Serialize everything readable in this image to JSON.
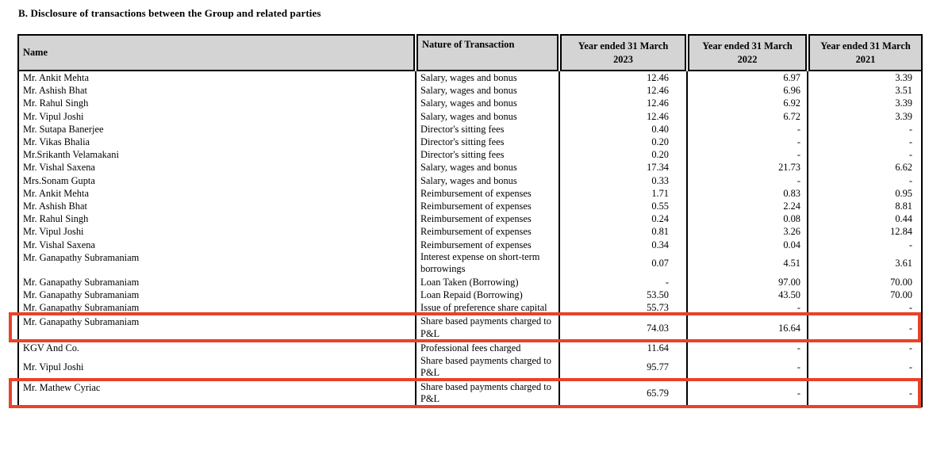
{
  "title": "B. Disclosure of transactions between the Group and related parties",
  "colors": {
    "highlight": "#e8432a",
    "header_bg": "#d4d4d4"
  },
  "table": {
    "columns": [
      "Name",
      "Nature of Transaction",
      "Year ended 31 March\n2023",
      "Year ended 31 March\n2022",
      "Year ended 31 March\n2021"
    ],
    "groups": [
      {
        "highlighted": false,
        "rows": [
          {
            "name": "Mr. Ankit Mehta",
            "nature": "Salary, wages and bonus",
            "v2023": "12.46",
            "v2022": "6.97",
            "v2021": "3.39"
          },
          {
            "name": "Mr. Ashish Bhat",
            "nature": "Salary, wages and bonus",
            "v2023": "12.46",
            "v2022": "6.96",
            "v2021": "3.51"
          },
          {
            "name": "Mr. Rahul Singh",
            "nature": "Salary, wages and bonus",
            "v2023": "12.46",
            "v2022": "6.92",
            "v2021": "3.39"
          },
          {
            "name": "Mr. Vipul Joshi",
            "nature": "Salary, wages and bonus",
            "v2023": "12.46",
            "v2022": "6.72",
            "v2021": "3.39"
          },
          {
            "name": "Mr. Sutapa Banerjee",
            "nature": "Director's sitting fees",
            "v2023": "0.40",
            "v2022": "-",
            "v2021": "-"
          },
          {
            "name": "Mr. Vikas Bhalia",
            "nature": "Director's sitting fees",
            "v2023": "0.20",
            "v2022": "-",
            "v2021": "-"
          },
          {
            "name": "Mr.Srikanth Velamakani",
            "nature": "Director's sitting fees",
            "v2023": "0.20",
            "v2022": "-",
            "v2021": "-"
          },
          {
            "name": "Mr. Vishal Saxena",
            "nature": "Salary, wages and bonus",
            "v2023": "17.34",
            "v2022": "21.73",
            "v2021": "6.62"
          },
          {
            "name": "Mrs.Sonam Gupta",
            "nature": "Salary, wages and bonus",
            "v2023": "0.33",
            "v2022": "-",
            "v2021": "-"
          },
          {
            "name": "Mr. Ankit Mehta",
            "nature": "Reimbursement of expenses",
            "v2023": "1.71",
            "v2022": "0.83",
            "v2021": "0.95"
          },
          {
            "name": "Mr. Ashish Bhat",
            "nature": "Reimbursement of expenses",
            "v2023": "0.55",
            "v2022": "2.24",
            "v2021": "8.81"
          },
          {
            "name": "Mr. Rahul Singh",
            "nature": "Reimbursement of expenses",
            "v2023": "0.24",
            "v2022": "0.08",
            "v2021": "0.44"
          },
          {
            "name": "Mr. Vipul Joshi",
            "nature": "Reimbursement of expenses",
            "v2023": "0.81",
            "v2022": "3.26",
            "v2021": "12.84"
          },
          {
            "name": "Mr. Vishal Saxena",
            "nature": "Reimbursement of expenses",
            "v2023": "0.34",
            "v2022": "0.04",
            "v2021": "-"
          },
          {
            "name": "Mr. Ganapathy Subramaniam",
            "nature": "Interest expense on short-term\nborrowings",
            "v2023": "0.07",
            "v2022": "4.51",
            "v2021": "3.61"
          },
          {
            "name": "Mr. Ganapathy Subramaniam",
            "nature": "Loan Taken (Borrowing)",
            "v2023": "-",
            "v2022": "97.00",
            "v2021": "70.00"
          },
          {
            "name": "Mr. Ganapathy Subramaniam",
            "nature": "Loan Repaid (Borrowing)",
            "v2023": "53.50",
            "v2022": "43.50",
            "v2021": "70.00"
          },
          {
            "name": "Mr. Ganapathy Subramaniam",
            "nature": "Issue of preference share capital",
            "v2023": "55.73",
            "v2022": "-",
            "v2021": "-"
          }
        ]
      },
      {
        "highlighted": true,
        "rows": [
          {
            "name": "Mr. Ganapathy Subramaniam",
            "nature": "Share based payments charged to\nP&L",
            "v2023": "74.03",
            "v2022": "16.64",
            "v2021": "-"
          }
        ]
      },
      {
        "highlighted": false,
        "rows": [
          {
            "name": "KGV And Co.",
            "nature": "Professional fees charged",
            "v2023": "11.64",
            "v2022": "-",
            "v2021": "-"
          },
          {
            "name": "Mr. Vipul Joshi",
            "nature": "Share based payments charged to\nP&L",
            "v2023": "95.77",
            "v2022": "-",
            "v2021": "-",
            "name_middle": true
          }
        ]
      },
      {
        "highlighted": true,
        "rows": [
          {
            "name": "Mr. Mathew Cyriac",
            "nature": "Share based payments charged to\nP&L",
            "v2023": "65.79",
            "v2022": "-",
            "v2021": "-"
          }
        ]
      }
    ]
  }
}
